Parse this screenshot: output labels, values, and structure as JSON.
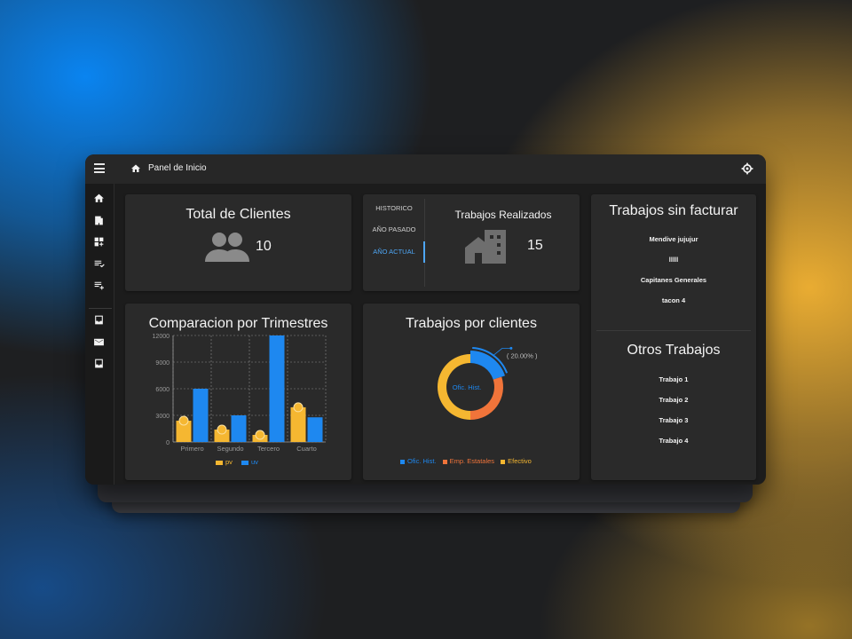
{
  "header": {
    "title": "Panel de Inicio"
  },
  "sidebar": {
    "icons": [
      "home-icon",
      "building-icon",
      "dashboard-add-icon",
      "playlist-check-icon",
      "playlist-add-icon",
      "inbox-icon",
      "mail-icon",
      "inbox-icon"
    ]
  },
  "total_clientes": {
    "title": "Total de Clientes",
    "value": "10"
  },
  "trabajos_realizados": {
    "tabs": [
      "HISTORICO",
      "AÑO PASADO",
      "AÑO ACTUAL"
    ],
    "active_tab": "AÑO ACTUAL",
    "title": "Trabajos Realizados",
    "value": "15"
  },
  "sin_facturar": {
    "title": "Trabajos sin facturar",
    "items": [
      "Mendive jujujur",
      "lllll",
      "Capitanes Generales",
      "tacon 4"
    ]
  },
  "otros": {
    "title": "Otros Trabajos",
    "items": [
      "Trabajo 1",
      "Trabajo 2",
      "Trabajo 3",
      "Trabajo 4"
    ]
  },
  "comparacion": {
    "title": "Comparacion por Trimestres",
    "chart_data": {
      "type": "bar",
      "categories": [
        "Primero",
        "Segundo",
        "Tercero",
        "Cuarto"
      ],
      "series": [
        {
          "name": "pv",
          "values": [
            2400,
            1398,
            800,
            3908
          ],
          "color": "#f5b731"
        },
        {
          "name": "uv",
          "values": [
            6000,
            3000,
            12000,
            2780
          ],
          "color": "#1e88f0"
        }
      ],
      "yticks": [
        "12000",
        "9000",
        "6000",
        "3000",
        "0"
      ],
      "ylim": [
        0,
        12000
      ],
      "grid": true
    }
  },
  "por_clientes": {
    "title": "Trabajos por clientes",
    "chart_data": {
      "type": "pie",
      "slices": [
        {
          "name": "Ofic. Hist.",
          "value": 20,
          "color": "#1e88f0"
        },
        {
          "name": "Emp. Estatales",
          "value": 30,
          "color": "#f0743a"
        },
        {
          "name": "Efectivo",
          "value": 50,
          "color": "#f5b731"
        }
      ],
      "center_label": "Ofic. Hist.",
      "callout": "( 20.00% )",
      "legend": [
        "Ofic. Hist.",
        "Emp. Estatales",
        "Efectivo"
      ]
    }
  }
}
